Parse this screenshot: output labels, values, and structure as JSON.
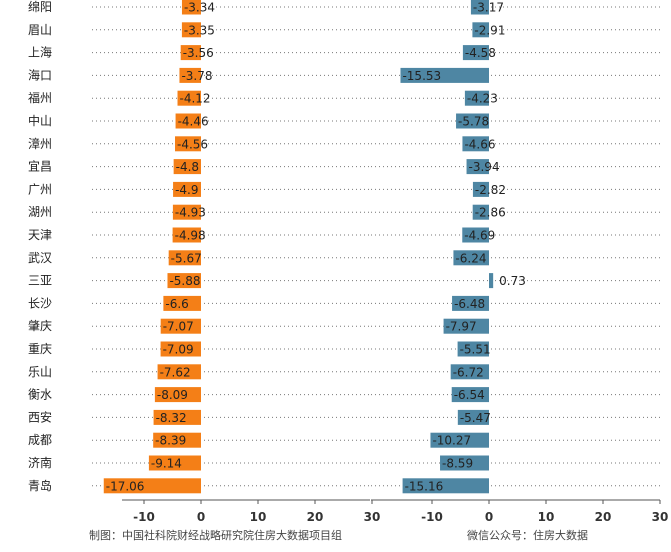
{
  "chart_data": {
    "type": "bar",
    "orientation": "horizontal",
    "categories": [
      "绵阳",
      "眉山",
      "上海",
      "海口",
      "福州",
      "中山",
      "漳州",
      "宜昌",
      "广州",
      "湖州",
      "天津",
      "武汉",
      "三亚",
      "长沙",
      "肇庆",
      "重庆",
      "乐山",
      "衡水",
      "西安",
      "成都",
      "济南",
      "青岛"
    ],
    "panels": [
      {
        "values": [
          -3.34,
          -3.35,
          -3.56,
          -3.78,
          -4.12,
          -4.46,
          -4.56,
          -4.8,
          -4.9,
          -4.93,
          -4.98,
          -5.67,
          -5.88,
          -6.6,
          -7.07,
          -7.09,
          -7.62,
          -8.09,
          -8.32,
          -8.39,
          -9.14,
          -17.06
        ],
        "value_labels": [
          "-3.34",
          "-3.35",
          "-3.56",
          "-3.78",
          "-4.12",
          "-4.46",
          "-4.56",
          "-4.8",
          "-4.9",
          "-4.93",
          "-4.98",
          "-5.67",
          "-5.88",
          "-6.6",
          "-7.07",
          "-7.09",
          "-7.62",
          "-8.09",
          "-8.32",
          "-8.39",
          "-9.14",
          "-17.06"
        ],
        "color": "#f47f17",
        "xlim": [
          -19,
          30
        ],
        "ticks": [
          -10,
          0,
          10,
          20,
          30
        ],
        "tick_labels": [
          "-10",
          "0",
          "10",
          "20",
          "30"
        ]
      },
      {
        "values": [
          -3.17,
          -2.91,
          -4.58,
          -15.53,
          -4.23,
          -5.78,
          -4.66,
          -3.94,
          -2.82,
          -2.86,
          -4.69,
          -6.24,
          0.73,
          -6.48,
          -7.97,
          -5.51,
          -6.72,
          -6.54,
          -5.47,
          -10.27,
          -8.59,
          -15.16
        ],
        "value_labels": [
          "-3.17",
          "-2.91",
          "-4.58",
          "-15.53",
          "-4.23",
          "-5.78",
          "-4.66",
          "-3.94",
          "-2.82",
          "-2.86",
          "-4.69",
          "-6.24",
          "0.73",
          "-6.48",
          "-7.97",
          "-5.51",
          "-6.72",
          "-6.54",
          "-5.47",
          "-10.27",
          "-8.59",
          "-15.16"
        ],
        "color": "#4e86a3",
        "xlim": [
          -17,
          30
        ],
        "ticks": [
          -10,
          0,
          10,
          20,
          30
        ],
        "tick_labels": [
          "-10",
          "0",
          "10",
          "20",
          "30"
        ]
      }
    ],
    "grid": "dotted row guides"
  },
  "footer": {
    "left": "制图：中国社科院财经战略研究院住房大数据项目组",
    "right": "微信公众号：住房大数据"
  }
}
